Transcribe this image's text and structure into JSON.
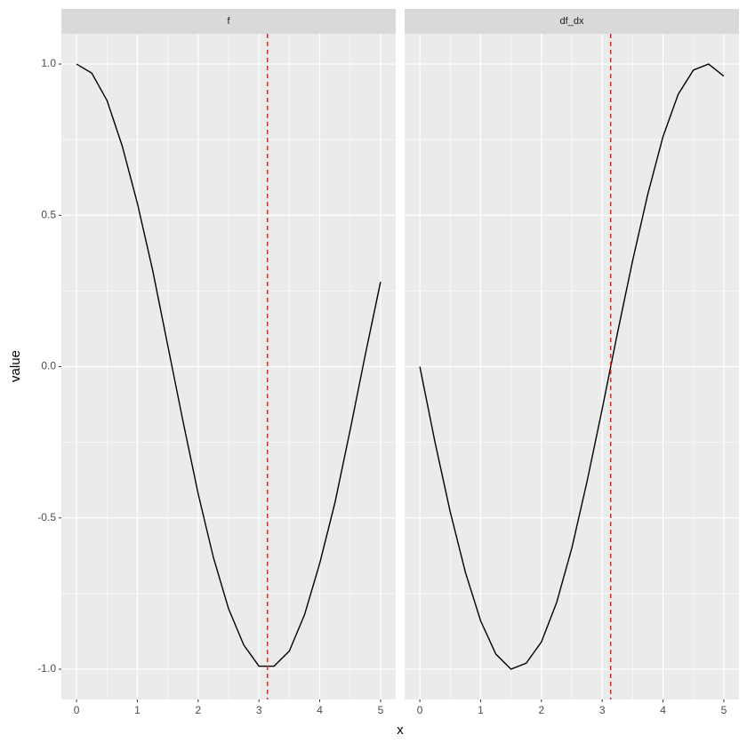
{
  "chart_data": [
    {
      "type": "line",
      "facet": "f",
      "x_label": "x",
      "y_label": "value",
      "x": [
        0,
        0.25,
        0.5,
        0.75,
        1,
        1.25,
        1.5,
        1.75,
        2,
        2.25,
        2.5,
        2.75,
        3,
        3.25,
        3.5,
        3.75,
        4,
        4.25,
        4.5,
        4.75,
        5
      ],
      "series": [
        {
          "color": "#000000",
          "values": [
            1,
            0.97,
            0.88,
            0.73,
            0.54,
            0.32,
            0.07,
            -0.18,
            -0.42,
            -0.63,
            -0.8,
            -0.92,
            -0.99,
            -0.99,
            -0.94,
            -0.82,
            -0.65,
            -0.45,
            -0.21,
            0.04,
            0.28
          ]
        }
      ],
      "vline": 3.14,
      "vline_color": "#e41a1c",
      "xlim": [
        -0.25,
        5.25
      ],
      "xticks": [
        0,
        1,
        2,
        3,
        4,
        5
      ],
      "ylim": [
        -1.1,
        1.1
      ],
      "yticks": [
        {
          "value": -1,
          "label": "-1.0"
        },
        {
          "value": -0.5,
          "label": "-0.5"
        },
        {
          "value": 0,
          "label": "0.0"
        },
        {
          "value": 0.5,
          "label": "0.5"
        },
        {
          "value": 1,
          "label": "1.0"
        }
      ],
      "grid": true
    },
    {
      "type": "line",
      "facet": "df_dx",
      "x": [
        0,
        0.25,
        0.5,
        0.75,
        1,
        1.25,
        1.5,
        1.75,
        2,
        2.25,
        2.5,
        2.75,
        3,
        3.25,
        3.5,
        3.75,
        4,
        4.25,
        4.5,
        4.75,
        5
      ],
      "series": [
        {
          "color": "#000000",
          "values": [
            0,
            -0.25,
            -0.48,
            -0.68,
            -0.84,
            -0.95,
            -1,
            -0.98,
            -0.91,
            -0.78,
            -0.6,
            -0.38,
            -0.14,
            0.11,
            0.35,
            0.57,
            0.76,
            0.9,
            0.98,
            1,
            0.96
          ]
        }
      ],
      "vline": 3.14,
      "vline_color": "#e41a1c",
      "xlim": [
        -0.25,
        5.25
      ],
      "xticks": [
        0,
        1,
        2,
        3,
        4,
        5
      ],
      "ylim": [
        -1.1,
        1.1
      ],
      "grid": true
    }
  ]
}
